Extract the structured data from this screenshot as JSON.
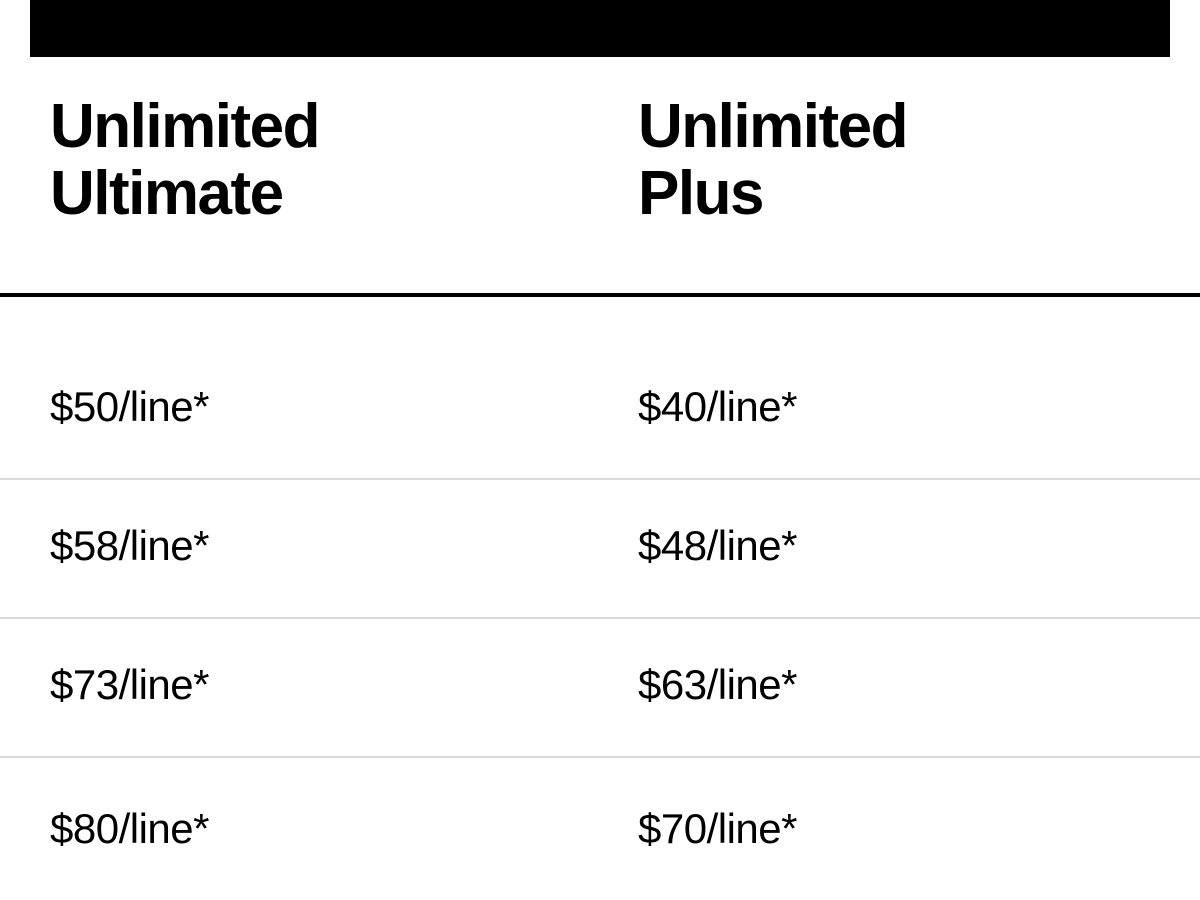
{
  "colors": {
    "background": "#ffffff",
    "text": "#000000",
    "banner": "#000000",
    "table_top_rule": "#000000",
    "row_divider": "#d9d9d9"
  },
  "pricing_table": {
    "column_headers": [
      {
        "line1": "Unlimited",
        "line2": "Ultimate"
      },
      {
        "line1": "Unlimited",
        "line2": "Plus"
      }
    ],
    "rows": [
      [
        "$50/line*",
        "$40/line*"
      ],
      [
        "$58/line*",
        "$48/line*"
      ],
      [
        "$73/line*",
        "$63/line*"
      ],
      [
        "$80/line*",
        "$70/line*"
      ]
    ]
  }
}
